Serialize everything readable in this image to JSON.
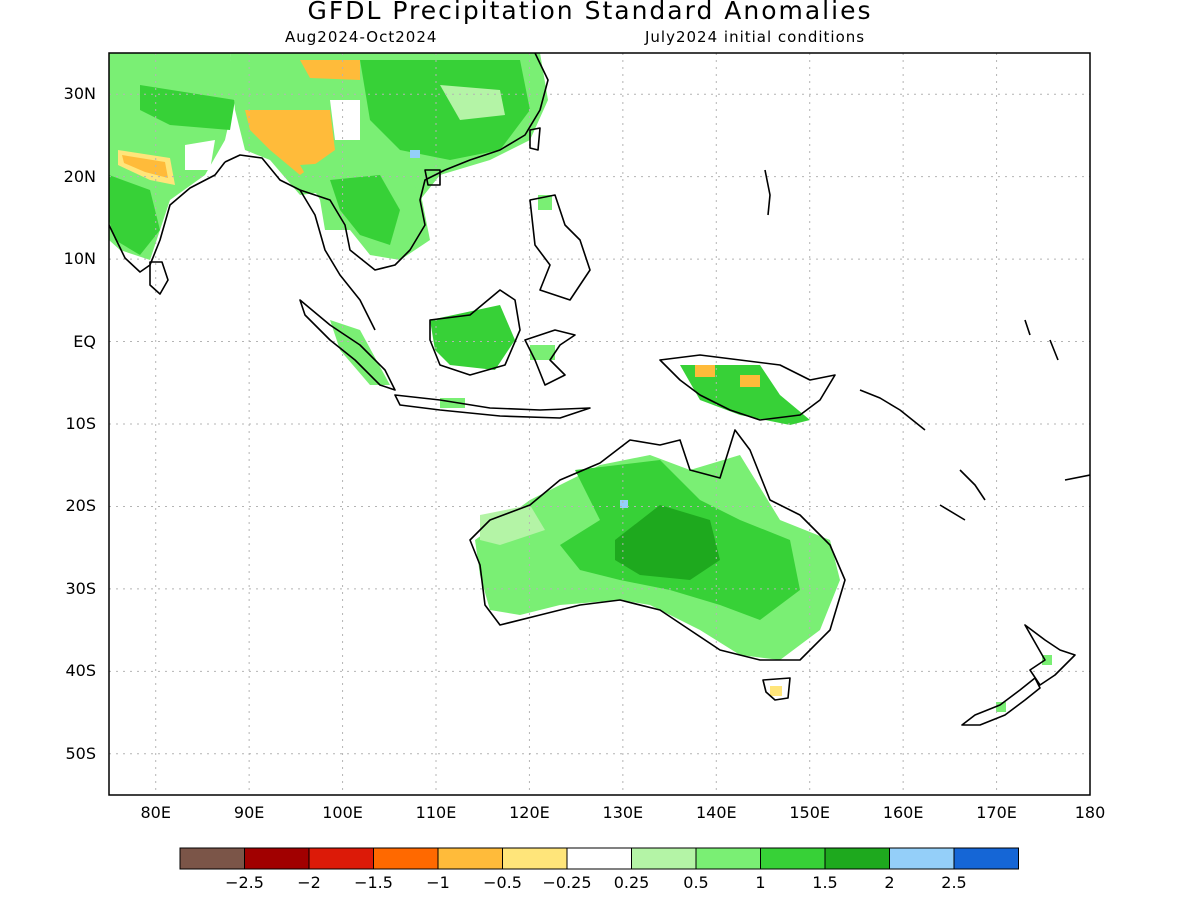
{
  "title": "GFDL Precipitation Standard Anomalies",
  "subtitle_left": "Aug2024-Oct2024",
  "subtitle_right": "July2024 initial conditions",
  "lat_labels": [
    "30N",
    "20N",
    "10N",
    "EQ",
    "10S",
    "20S",
    "30S",
    "40S",
    "50S"
  ],
  "lon_labels": [
    "80E",
    "90E",
    "100E",
    "110E",
    "120E",
    "130E",
    "140E",
    "150E",
    "160E",
    "170E",
    "180"
  ],
  "colorbar": {
    "colors": [
      "#7b5548",
      "#a10000",
      "#dc1a08",
      "#ff6900",
      "#ffbb3a",
      "#ffe57a",
      "#ffffff",
      "#b4f4a6",
      "#7aef74",
      "#37d137",
      "#1ea91e",
      "#94cff9",
      "#1566d6"
    ],
    "labels": [
      "-2.5",
      "-2",
      "-1.5",
      "-1",
      "-0.5",
      "-0.25",
      "0.25",
      "0.5",
      "1",
      "1.5",
      "2",
      "2.5"
    ]
  },
  "colors": {
    "land_outline": "#000000",
    "grid": "#b4b4b4",
    "anomaly_0_5": "#b4f4a6",
    "anomaly_1": "#7aef74",
    "anomaly_1_5": "#37d137",
    "anomaly_2": "#1ea91e",
    "anomaly_neg_0_5": "#ffbb3a",
    "anomaly_neg_0_25": "#ffe57a",
    "anomaly_2_5": "#94cff9"
  }
}
